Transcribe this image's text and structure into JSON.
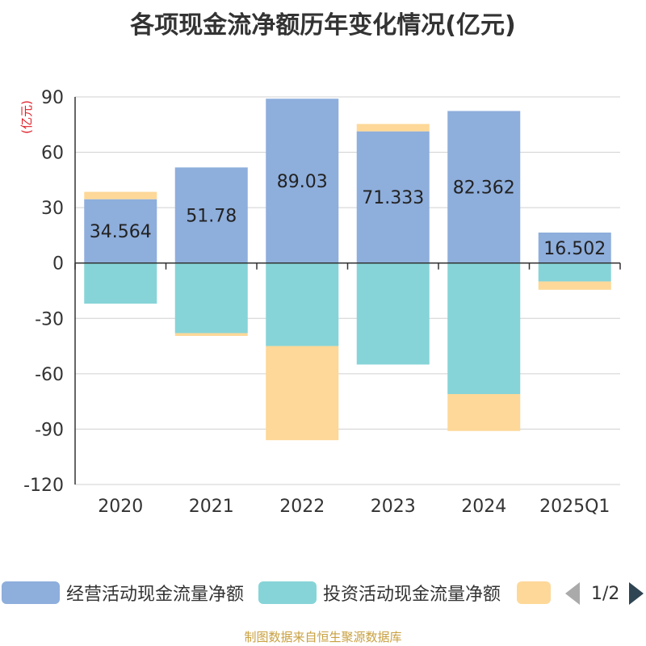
{
  "chart_data": {
    "type": "bar",
    "stacked": true,
    "title": "各项现金流净额历年变化情况(亿元)",
    "ylabel": "(亿元)",
    "ylim": [
      -120,
      90
    ],
    "yticks": [
      90,
      60,
      30,
      0,
      -30,
      -60,
      -90,
      -120
    ],
    "categories": [
      "2020",
      "2021",
      "2022",
      "2023",
      "2024",
      "2025Q1"
    ],
    "series": [
      {
        "name": "经营活动现金流量净额",
        "color": "#8eaedc",
        "values": [
          34.564,
          51.78,
          89.03,
          71.333,
          82.362,
          16.502
        ],
        "labels": [
          "34.564",
          "51.78",
          "89.03",
          "71.333",
          "82.362",
          "16.502"
        ]
      },
      {
        "name": "投资活动现金流量净额",
        "color": "#86d4d8",
        "values": [
          -22,
          -38,
          -45,
          -55,
          -71,
          -10
        ]
      },
      {
        "name": "",
        "color": "#fdd898",
        "values": [
          4,
          -1.5,
          -51,
          4,
          -20,
          -4.5
        ]
      }
    ],
    "legend_position": "bottom",
    "grid": true
  },
  "legend": {
    "item1": "经营活动现金流量净额",
    "item2": "投资活动现金流量净额",
    "page": "1/2"
  },
  "source": "制图数据来自恒生聚源数据库"
}
